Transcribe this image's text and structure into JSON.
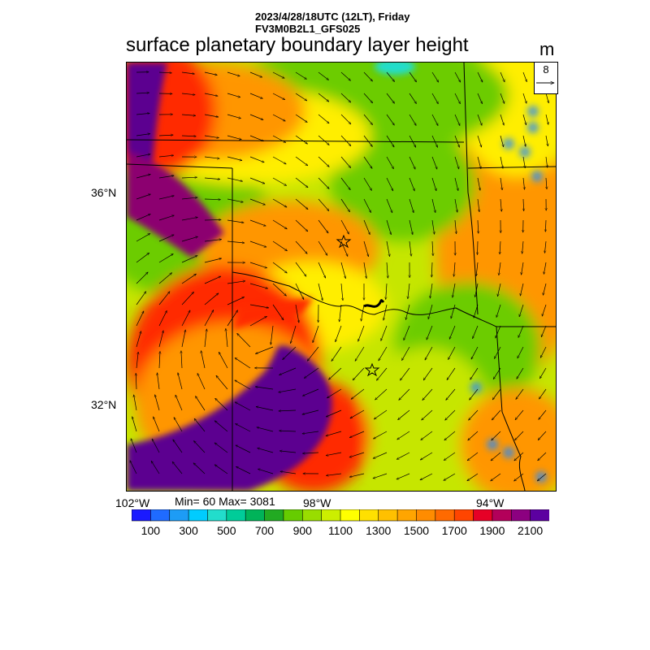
{
  "header": {
    "line1": "2023/4/28/18UTC (12LT), Friday",
    "line2": "FV3M0B2L1_GFS025"
  },
  "title": "surface planetary boundary layer height",
  "unit": "m",
  "reference_vector": {
    "label": "8"
  },
  "axes": {
    "lat_labels": [
      "36°N",
      "32°N"
    ],
    "lon_labels": [
      "102°W",
      "98°W",
      "94°W"
    ]
  },
  "stats": "Min= 60 Max= 3081",
  "colorbar": {
    "colors": [
      "#1a1aff",
      "#1f6bff",
      "#1d9cf5",
      "#00ccff",
      "#22ddcc",
      "#00cc99",
      "#00b359",
      "#22aa22",
      "#66cc00",
      "#99dd00",
      "#ccee00",
      "#ffff00",
      "#ffe000",
      "#ffc000",
      "#ffa500",
      "#ff8c00",
      "#ff6a00",
      "#ff4500",
      "#e60026",
      "#b3005a",
      "#8c0080",
      "#5c00a0"
    ],
    "labels": [
      "100",
      "300",
      "500",
      "700",
      "900",
      "1100",
      "1300",
      "1500",
      "1700",
      "1900",
      "2100"
    ]
  },
  "field_colors": {
    "purple": "#5c0090",
    "magenta": "#8c0070",
    "red": "#ff2a00",
    "orange": "#ff9600",
    "yellow": "#ffee00",
    "yellowgreen": "#c6e600",
    "green": "#6ccc00",
    "darkgreen": "#30aa20",
    "cyan": "#22ddcc",
    "blue": "#2288ff"
  },
  "markers": [
    "star-marker-1",
    "star-marker-2"
  ]
}
